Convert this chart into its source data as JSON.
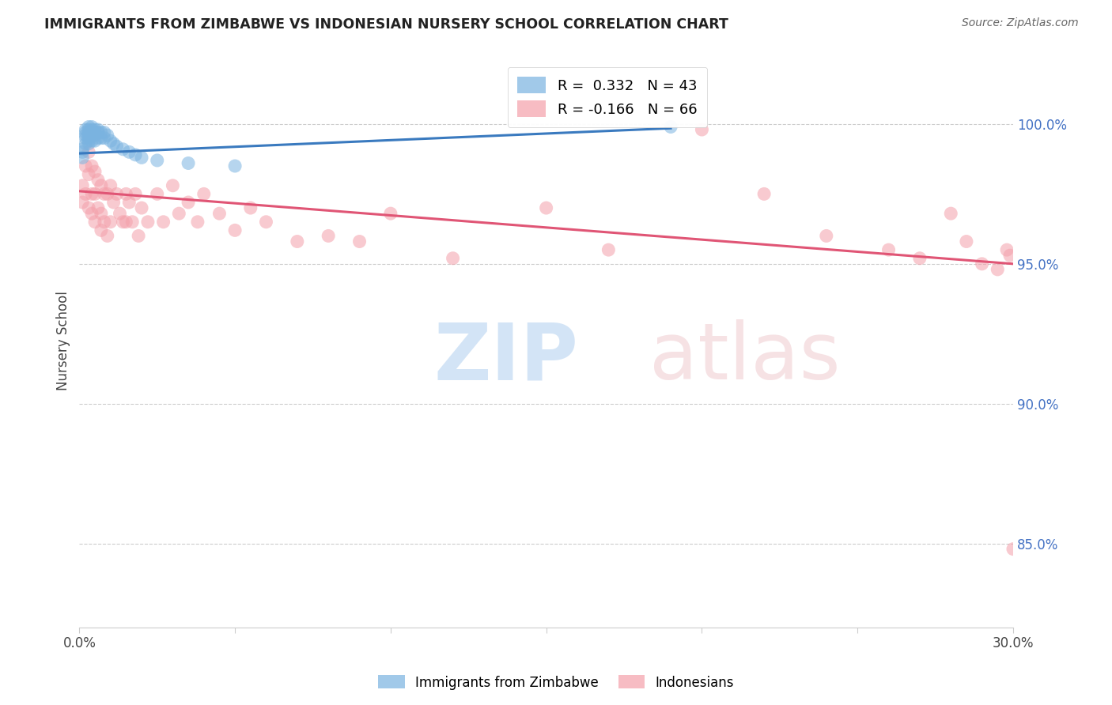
{
  "title": "IMMIGRANTS FROM ZIMBABWE VS INDONESIAN NURSERY SCHOOL CORRELATION CHART",
  "source": "Source: ZipAtlas.com",
  "ylabel": "Nursery School",
  "y_ticks": [
    85.0,
    90.0,
    95.0,
    100.0
  ],
  "y_tick_labels": [
    "85.0%",
    "90.0%",
    "95.0%",
    "100.0%"
  ],
  "xlim": [
    0.0,
    0.3
  ],
  "ylim": [
    0.82,
    1.025
  ],
  "legend_blue": "R =  0.332   N = 43",
  "legend_pink": "R = -0.166   N = 66",
  "blue_color": "#7ab3e0",
  "pink_color": "#f4a0aa",
  "trendline_blue_color": "#3a7abf",
  "trendline_pink_color": "#e05575",
  "blue_points_x": [
    0.001,
    0.001,
    0.001,
    0.002,
    0.002,
    0.002,
    0.002,
    0.002,
    0.003,
    0.003,
    0.003,
    0.003,
    0.003,
    0.003,
    0.003,
    0.004,
    0.004,
    0.004,
    0.004,
    0.004,
    0.005,
    0.005,
    0.005,
    0.005,
    0.006,
    0.006,
    0.006,
    0.007,
    0.007,
    0.008,
    0.008,
    0.009,
    0.01,
    0.011,
    0.012,
    0.014,
    0.016,
    0.018,
    0.02,
    0.025,
    0.035,
    0.05,
    0.19
  ],
  "blue_points_y": [
    0.991,
    0.99,
    0.988,
    0.998,
    0.997,
    0.996,
    0.995,
    0.993,
    0.999,
    0.998,
    0.997,
    0.996,
    0.995,
    0.994,
    0.993,
    0.999,
    0.998,
    0.997,
    0.996,
    0.994,
    0.998,
    0.997,
    0.996,
    0.994,
    0.998,
    0.997,
    0.995,
    0.997,
    0.995,
    0.997,
    0.995,
    0.996,
    0.994,
    0.993,
    0.992,
    0.991,
    0.99,
    0.989,
    0.988,
    0.987,
    0.986,
    0.985,
    0.999
  ],
  "pink_points_x": [
    0.001,
    0.001,
    0.002,
    0.002,
    0.003,
    0.003,
    0.003,
    0.004,
    0.004,
    0.004,
    0.005,
    0.005,
    0.005,
    0.006,
    0.006,
    0.007,
    0.007,
    0.007,
    0.008,
    0.008,
    0.009,
    0.009,
    0.01,
    0.01,
    0.011,
    0.012,
    0.013,
    0.014,
    0.015,
    0.015,
    0.016,
    0.017,
    0.018,
    0.019,
    0.02,
    0.022,
    0.025,
    0.027,
    0.03,
    0.032,
    0.035,
    0.038,
    0.04,
    0.045,
    0.05,
    0.055,
    0.06,
    0.07,
    0.08,
    0.09,
    0.1,
    0.12,
    0.15,
    0.17,
    0.2,
    0.22,
    0.24,
    0.26,
    0.27,
    0.28,
    0.285,
    0.29,
    0.295,
    0.298,
    0.299,
    0.3
  ],
  "pink_points_y": [
    0.978,
    0.972,
    0.985,
    0.975,
    0.99,
    0.982,
    0.97,
    0.985,
    0.975,
    0.968,
    0.983,
    0.975,
    0.965,
    0.98,
    0.97,
    0.978,
    0.968,
    0.962,
    0.975,
    0.965,
    0.975,
    0.96,
    0.978,
    0.965,
    0.972,
    0.975,
    0.968,
    0.965,
    0.975,
    0.965,
    0.972,
    0.965,
    0.975,
    0.96,
    0.97,
    0.965,
    0.975,
    0.965,
    0.978,
    0.968,
    0.972,
    0.965,
    0.975,
    0.968,
    0.962,
    0.97,
    0.965,
    0.958,
    0.96,
    0.958,
    0.968,
    0.952,
    0.97,
    0.955,
    0.998,
    0.975,
    0.96,
    0.955,
    0.952,
    0.968,
    0.958,
    0.95,
    0.948,
    0.955,
    0.953,
    0.848
  ],
  "blue_trendline_x": [
    0.0,
    0.19
  ],
  "blue_trendline_y": [
    0.9895,
    0.9985
  ],
  "pink_trendline_x": [
    0.0,
    0.3
  ],
  "pink_trendline_y": [
    0.976,
    0.95
  ]
}
